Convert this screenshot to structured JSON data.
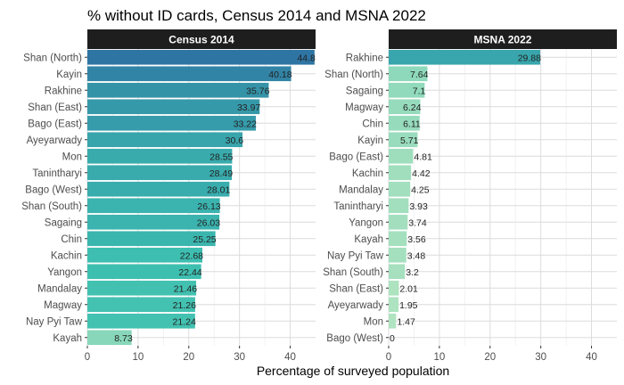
{
  "chart_data": {
    "title": "% without ID cards, Census 2014 and MSNA 2022",
    "xlabel": "Percentage of surveyed population",
    "xlim": [
      0,
      45
    ],
    "x_ticks": [
      0,
      10,
      20,
      30,
      40
    ],
    "grid": true,
    "type": "bar",
    "orientation": "horizontal",
    "panels": [
      {
        "name": "Census 2014",
        "categories": [
          "Shan (North)",
          "Kayin",
          "Rakhine",
          "Shan (East)",
          "Bago (East)",
          "Ayeyarwady",
          "Mon",
          "Tanintharyi",
          "Bago (West)",
          "Shan (South)",
          "Sagaing",
          "Chin",
          "Kachin",
          "Yangon",
          "Mandalay",
          "Magway",
          "Nay Pyi Taw",
          "Kayah"
        ],
        "values": [
          44.8,
          40.18,
          35.76,
          33.97,
          33.22,
          30.6,
          28.55,
          28.49,
          28.01,
          26.13,
          26.03,
          25.25,
          22.68,
          22.44,
          21.46,
          21.26,
          21.24,
          8.73
        ],
        "labels": [
          "44.8",
          "40.18",
          "35.76",
          "33.97",
          "33.22",
          "30.6",
          "28.55",
          "28.49",
          "28.01",
          "26.13",
          "26.03",
          "25.25",
          "22.68",
          "22.44",
          "21.46",
          "21.26",
          "21.24",
          "8.73"
        ]
      },
      {
        "name": "MSNA 2022",
        "categories": [
          "Rakhine",
          "Shan (North)",
          "Sagaing",
          "Magway",
          "Chin",
          "Kayin",
          "Bago (East)",
          "Kachin",
          "Mandalay",
          "Tanintharyi",
          "Yangon",
          "Kayah",
          "Nay Pyi Taw",
          "Shan (South)",
          "Shan (East)",
          "Ayeyarwady",
          "Mon",
          "Bago (West)"
        ],
        "values": [
          29.88,
          7.64,
          7.1,
          6.24,
          6.11,
          5.71,
          4.81,
          4.42,
          4.25,
          3.93,
          3.74,
          3.56,
          3.48,
          3.2,
          2.01,
          1.95,
          1.47,
          0
        ],
        "labels": [
          "29.88",
          "7.64",
          "7.1",
          "6.24",
          "6.11",
          "5.71",
          "4.81",
          "4.42",
          "4.25",
          "3.93",
          "3.74",
          "3.56",
          "3.48",
          "3.2",
          "2.01",
          "1.95",
          "1.47",
          "0"
        ]
      }
    ],
    "colors": {
      "scale_low": "#b8e6c1",
      "scale_mid": "#3dbfb0",
      "scale_high": "#2f75a3",
      "panel_bg": "#ffffff",
      "grid_major": "#dcdcdc",
      "grid_minor": "#efefef",
      "strip_bg": "#1e1e1e",
      "strip_text": "#ffffff"
    }
  }
}
